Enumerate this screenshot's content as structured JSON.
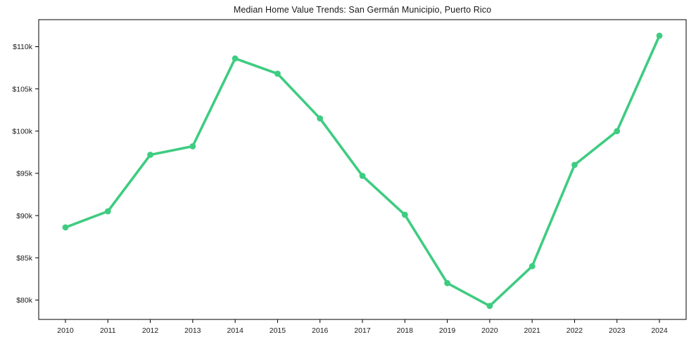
{
  "chart_data": {
    "type": "line",
    "title": "Median Home Value Trends: San Germán Municipio, Puerto Rico",
    "xlabel": "",
    "ylabel": "",
    "categories": [
      "2010",
      "2011",
      "2012",
      "2013",
      "2014",
      "2015",
      "2016",
      "2017",
      "2018",
      "2019",
      "2020",
      "2021",
      "2022",
      "2023",
      "2024"
    ],
    "series": [
      {
        "name": "Median Home Value",
        "values": [
          88600,
          90500,
          97200,
          98200,
          108600,
          106800,
          101500,
          94700,
          90100,
          82000,
          79300,
          84000,
          96000,
          100000,
          111300
        ]
      }
    ],
    "ylim": [
      77700,
      113200
    ],
    "yticks": [
      80000,
      85000,
      90000,
      95000,
      100000,
      105000,
      110000
    ],
    "ytick_prefix": "$",
    "ytick_suffix": "k",
    "grid": false,
    "legend_position": "none",
    "line_color": "#3ecc81",
    "marker": "circle",
    "axis_color": "#000000",
    "tick_label_color": "#1a1a1a"
  }
}
